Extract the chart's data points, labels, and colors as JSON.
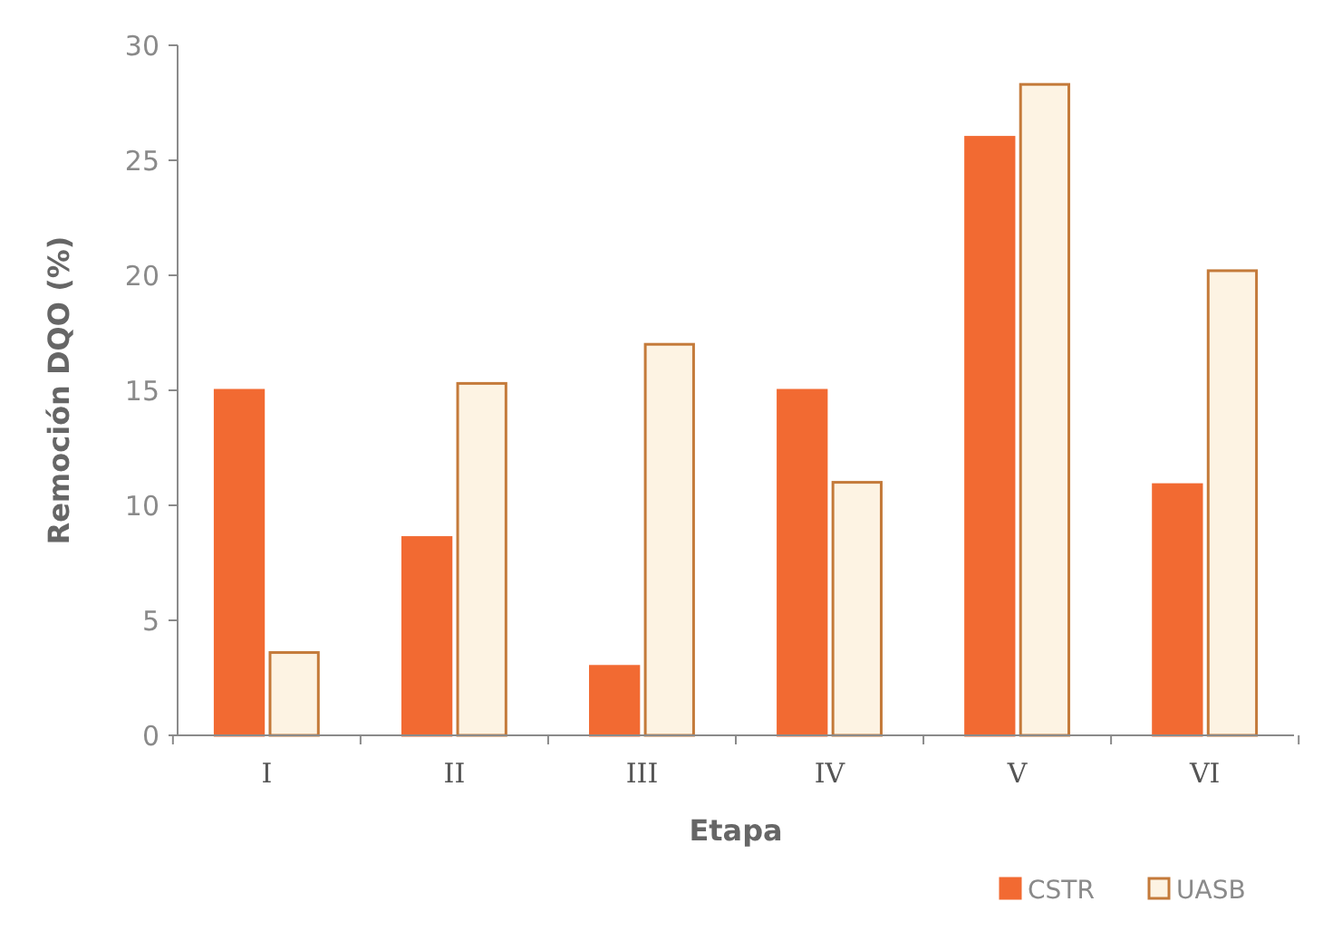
{
  "chart_data": {
    "type": "bar",
    "xlabel": "Etapa",
    "ylabel": "Remoción DQO (%)",
    "categories": [
      "I",
      "II",
      "III",
      "IV",
      "V",
      "VI"
    ],
    "series": [
      {
        "name": "CSTR",
        "color": "#f26a32",
        "values": [
          15,
          8.6,
          3,
          15,
          26,
          10.9
        ]
      },
      {
        "name": "UASB",
        "color": "#fdf3e3",
        "values": [
          3.6,
          15.3,
          17,
          11,
          28.3,
          20.2
        ]
      }
    ],
    "ylim": [
      0,
      30
    ],
    "yticks": [
      0,
      5,
      10,
      15,
      20,
      25,
      30
    ],
    "grid": false,
    "legend": "bottom right"
  }
}
